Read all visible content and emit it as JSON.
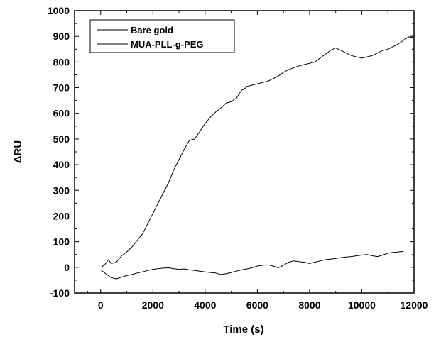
{
  "chart_data": {
    "type": "line",
    "xlabel": "Time (s)",
    "ylabel": "ΔRU",
    "xlim": [
      -1000,
      12000
    ],
    "ylim": [
      -100,
      1000
    ],
    "x_ticks": [
      0,
      2000,
      4000,
      6000,
      8000,
      10000,
      12000
    ],
    "y_ticks": [
      -100,
      0,
      100,
      200,
      300,
      400,
      500,
      600,
      700,
      800,
      900,
      1000
    ],
    "legend_position": "top-left",
    "grid": false,
    "series": [
      {
        "name": "Bare gold",
        "color": "#000000",
        "x": [
          0,
          150,
          300,
          400,
          600,
          800,
          1000,
          1200,
          1400,
          1600,
          1800,
          2000,
          2200,
          2400,
          2600,
          2800,
          3000,
          3200,
          3400,
          3600,
          3800,
          4000,
          4200,
          4400,
          4600,
          4800,
          5000,
          5200,
          5400,
          5500,
          5600,
          5800,
          6000,
          6200,
          6400,
          6600,
          6800,
          7000,
          7200,
          7400,
          7600,
          7800,
          8000,
          8200,
          8400,
          8600,
          8800,
          9000,
          9200,
          9400,
          9600,
          9800,
          10000,
          10200,
          10400,
          10600,
          10800,
          11000,
          11200,
          11400,
          11600,
          11800,
          12000
        ],
        "values": [
          0,
          10,
          30,
          15,
          20,
          45,
          60,
          80,
          105,
          130,
          170,
          210,
          250,
          290,
          330,
          380,
          420,
          460,
          495,
          500,
          530,
          560,
          585,
          605,
          620,
          640,
          645,
          660,
          690,
          695,
          705,
          710,
          715,
          720,
          725,
          735,
          745,
          760,
          770,
          778,
          785,
          790,
          795,
          800,
          815,
          830,
          845,
          855,
          845,
          835,
          825,
          820,
          815,
          820,
          825,
          835,
          845,
          850,
          860,
          870,
          885,
          898,
          895
        ]
      },
      {
        "name": "MUA-PLL-g-PEG",
        "color": "#000000",
        "x": [
          0,
          200,
          400,
          600,
          800,
          1000,
          1200,
          1400,
          1600,
          1800,
          2000,
          2200,
          2400,
          2600,
          2800,
          3000,
          3200,
          3400,
          3600,
          3800,
          4000,
          4200,
          4400,
          4600,
          4800,
          5000,
          5200,
          5400,
          5600,
          5800,
          6000,
          6200,
          6400,
          6600,
          6800,
          7000,
          7200,
          7400,
          7600,
          7800,
          8000,
          8200,
          8400,
          8600,
          8800,
          9000,
          9200,
          9400,
          9600,
          9800,
          10000,
          10200,
          10400,
          10600,
          10800,
          11000,
          11200,
          11400,
          11600
        ],
        "values": [
          -10,
          -25,
          -40,
          -45,
          -38,
          -32,
          -28,
          -22,
          -18,
          -12,
          -8,
          -5,
          -3,
          -2,
          -5,
          -8,
          -6,
          -10,
          -12,
          -15,
          -18,
          -20,
          -22,
          -28,
          -25,
          -20,
          -15,
          -10,
          -6,
          -2,
          5,
          8,
          10,
          5,
          -2,
          8,
          20,
          25,
          22,
          20,
          15,
          20,
          25,
          30,
          32,
          35,
          38,
          40,
          42,
          45,
          48,
          50,
          45,
          42,
          48,
          55,
          58,
          60,
          62
        ]
      }
    ]
  }
}
